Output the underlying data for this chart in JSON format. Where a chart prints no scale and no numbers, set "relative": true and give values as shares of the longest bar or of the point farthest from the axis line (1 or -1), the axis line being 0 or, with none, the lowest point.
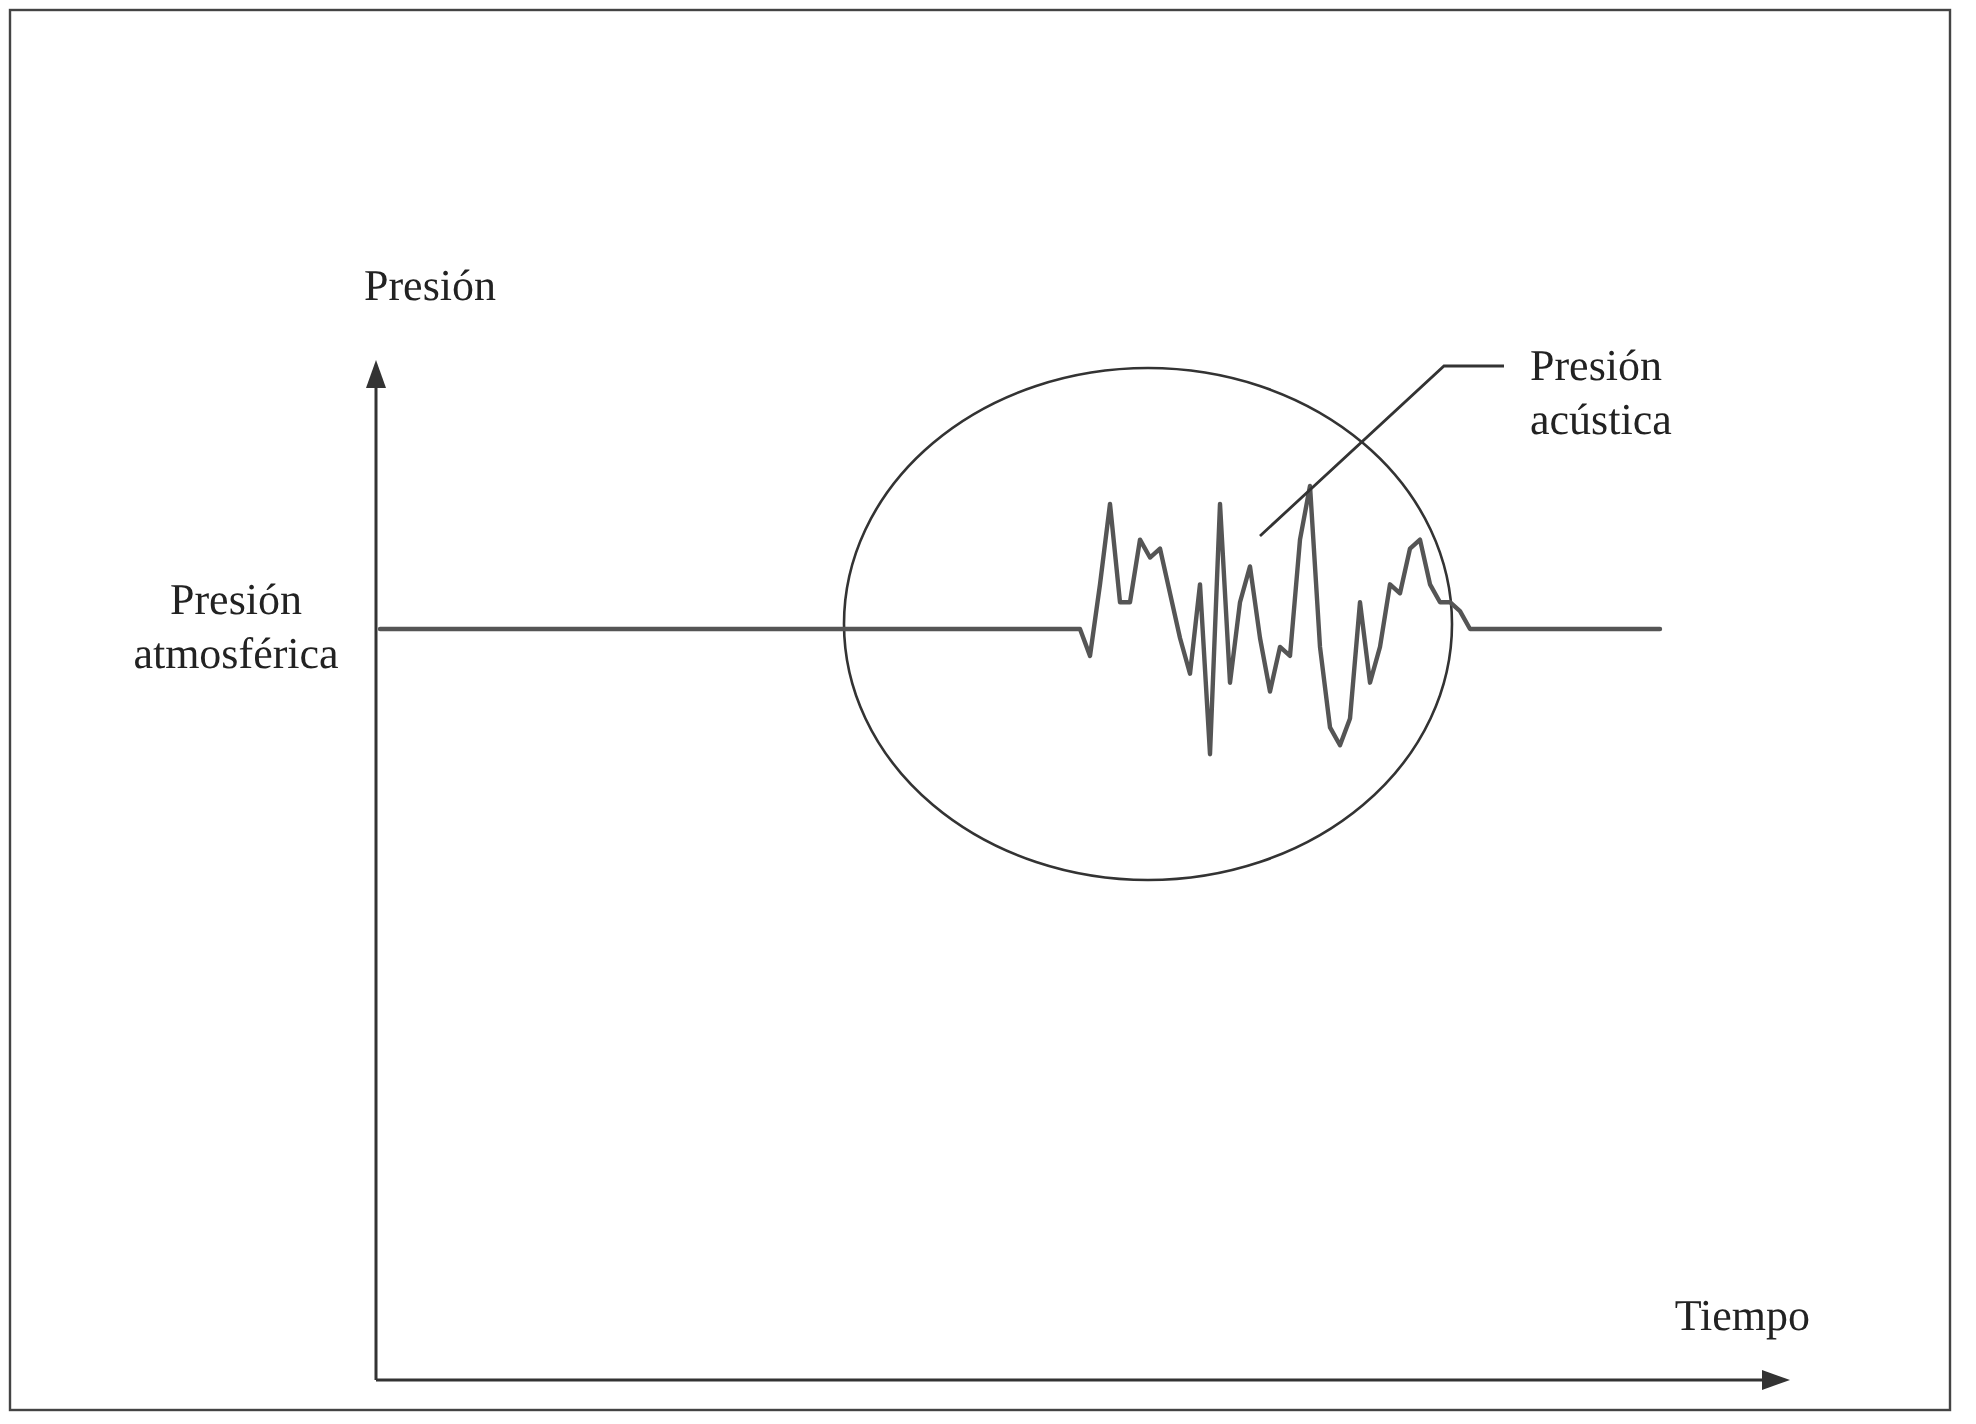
{
  "chart_data": {
    "type": "line",
    "relative": true,
    "xlabel": "Tiempo",
    "ylabel": "Presión",
    "color": "#555555",
    "categories": [
      null,
      null,
      null,
      null,
      null,
      null,
      null,
      null,
      null,
      null,
      null,
      null,
      null,
      null,
      null,
      null,
      null,
      null,
      null,
      null,
      null,
      null,
      null,
      null,
      null,
      null,
      null,
      null,
      null,
      null,
      null,
      null,
      null,
      null,
      null,
      null,
      null,
      null,
      null,
      null,
      null,
      null,
      null,
      null,
      null,
      null,
      null,
      null,
      null,
      null,
      null,
      null,
      null,
      null,
      null,
      null,
      null,
      null,
      null,
      null,
      null,
      null,
      null,
      null,
      null,
      null,
      null,
      null,
      null,
      null,
      null,
      null,
      null,
      null,
      null,
      null,
      null,
      null,
      null,
      null,
      null,
      null,
      null,
      null,
      null,
      null,
      null,
      null,
      null,
      null,
      null,
      null,
      null,
      null,
      null,
      null,
      null,
      null,
      null,
      null,
      null,
      null,
      null,
      null,
      null,
      null,
      null,
      null,
      null,
      null,
      null,
      null,
      null,
      null,
      null,
      null,
      null,
      null,
      null,
      null,
      null,
      null,
      null,
      null,
      null,
      null,
      null,
      null,
      null
    ],
    "values": [
      0.84,
      0.84,
      0.84,
      0.84,
      0.84,
      0.84,
      0.84,
      0.84,
      0.84,
      0.84,
      0.84,
      0.84,
      0.84,
      0.84,
      0.84,
      0.84,
      0.84,
      0.84,
      0.84,
      0.84,
      0.84,
      0.84,
      0.84,
      0.84,
      0.84,
      0.84,
      0.84,
      0.84,
      0.84,
      0.84,
      0.84,
      0.84,
      0.84,
      0.84,
      0.84,
      0.84,
      0.84,
      0.84,
      0.84,
      0.84,
      0.84,
      0.84,
      0.84,
      0.84,
      0.84,
      0.84,
      0.84,
      0.84,
      0.84,
      0.84,
      0.84,
      0.84,
      0.84,
      0.84,
      0.84,
      0.84,
      0.84,
      0.84,
      0.84,
      0.84,
      0.84,
      0.84,
      0.84,
      0.84,
      0.84,
      0.84,
      0.84,
      0.84,
      0.84,
      0.84,
      0.84,
      0.81,
      0.89,
      0.98,
      0.87,
      0.87,
      0.94,
      0.92,
      0.93,
      0.88,
      0.83,
      0.79,
      0.89,
      0.7,
      0.98,
      0.78,
      0.87,
      0.91,
      0.83,
      0.77,
      0.82,
      0.81,
      0.94,
      1,
      0.82,
      0.73,
      0.71,
      0.74,
      0.87,
      0.78,
      0.82,
      0.89,
      0.88,
      0.93,
      0.94,
      0.89,
      0.87,
      0.87,
      0.86,
      0.84,
      0.84,
      0.84,
      0.84,
      0.84,
      0.84,
      0.84,
      0.84,
      0.84,
      0.84,
      0.84,
      0.84,
      0.84,
      0.84,
      0.84,
      0.84,
      0.84,
      0.84,
      0.84,
      0.84
    ],
    "annotations": [
      "Presión atmosférica",
      "Presión acústica"
    ]
  }
}
